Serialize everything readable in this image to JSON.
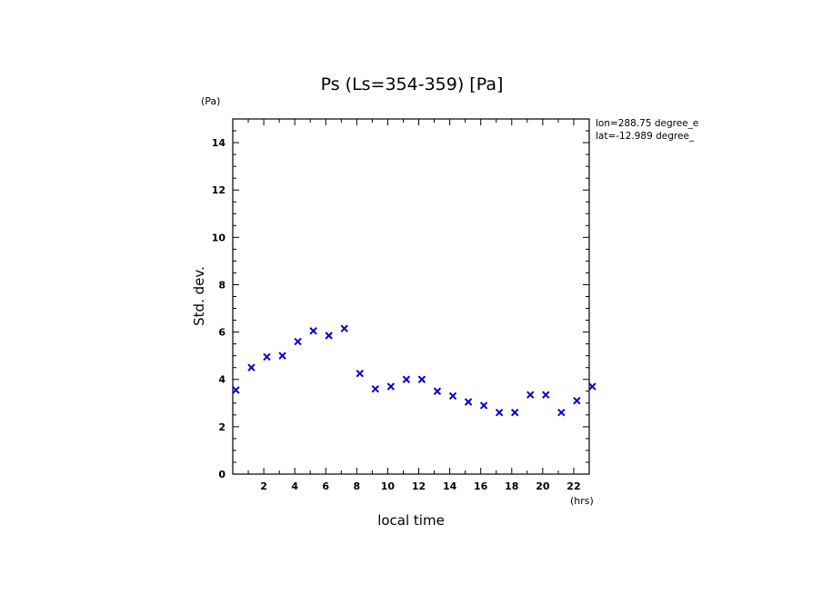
{
  "chart_data": {
    "type": "scatter",
    "title": "Ps (Ls=354-359) [Pa]",
    "xlabel": "local time",
    "ylabel": "Std. dev.",
    "x_unit": "(hrs)",
    "y_unit": "(Pa)",
    "xlim": [
      0,
      23
    ],
    "ylim": [
      0,
      15
    ],
    "x_ticks": [
      2,
      4,
      6,
      8,
      10,
      12,
      14,
      16,
      18,
      20,
      22
    ],
    "y_ticks": [
      0,
      2,
      4,
      6,
      8,
      10,
      12,
      14
    ],
    "annotations": [
      "lon=288.75 degree_e",
      "lat=-12.989 degree_"
    ],
    "marker": "x",
    "marker_color": "#0000cc",
    "grid": false,
    "x": [
      0.2,
      1.2,
      2.2,
      3.2,
      4.2,
      5.2,
      6.2,
      7.2,
      8.2,
      9.2,
      10.2,
      11.2,
      12.2,
      13.2,
      14.2,
      15.2,
      16.2,
      17.2,
      18.2,
      19.2,
      20.2,
      21.2,
      22.2,
      23.2
    ],
    "y": [
      3.55,
      4.5,
      4.95,
      5.0,
      5.6,
      6.05,
      5.85,
      6.15,
      4.25,
      3.6,
      3.7,
      4.0,
      4.0,
      3.5,
      3.3,
      3.05,
      2.9,
      2.6,
      2.6,
      3.35,
      3.35,
      2.6,
      3.1,
      3.7
    ]
  }
}
